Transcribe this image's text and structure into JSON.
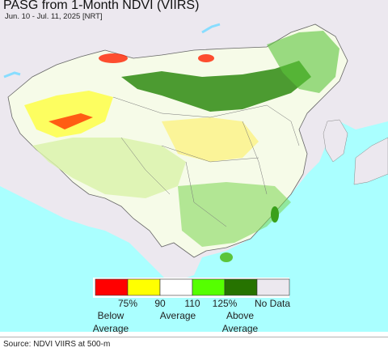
{
  "title": "PASG from 1-Month NDVI (VIIRS)",
  "subtitle": "Jun. 10 - Jul. 11, 2025 [NRT]",
  "legend": {
    "colors": [
      "#ff0000",
      "#ffff00",
      "#ffffff",
      "#55ff00",
      "#267300",
      "#ece8ef"
    ],
    "tick_labels": [
      "75%",
      "90",
      "110",
      "125%",
      "No Data"
    ],
    "below_label": "Below",
    "below_label2": "Average",
    "average_label": "Average",
    "above_label": "Above",
    "above_label2": "Average"
  },
  "source": "Source: NDVI VIIRS at 500-m",
  "colors": {
    "ocean": "#aaffff",
    "no_data": "#ece8ef",
    "normal": "#ffffff",
    "dry": "#ffff00",
    "severe": "#ff0000",
    "wet": "#55ff00",
    "very_wet": "#267300"
  }
}
